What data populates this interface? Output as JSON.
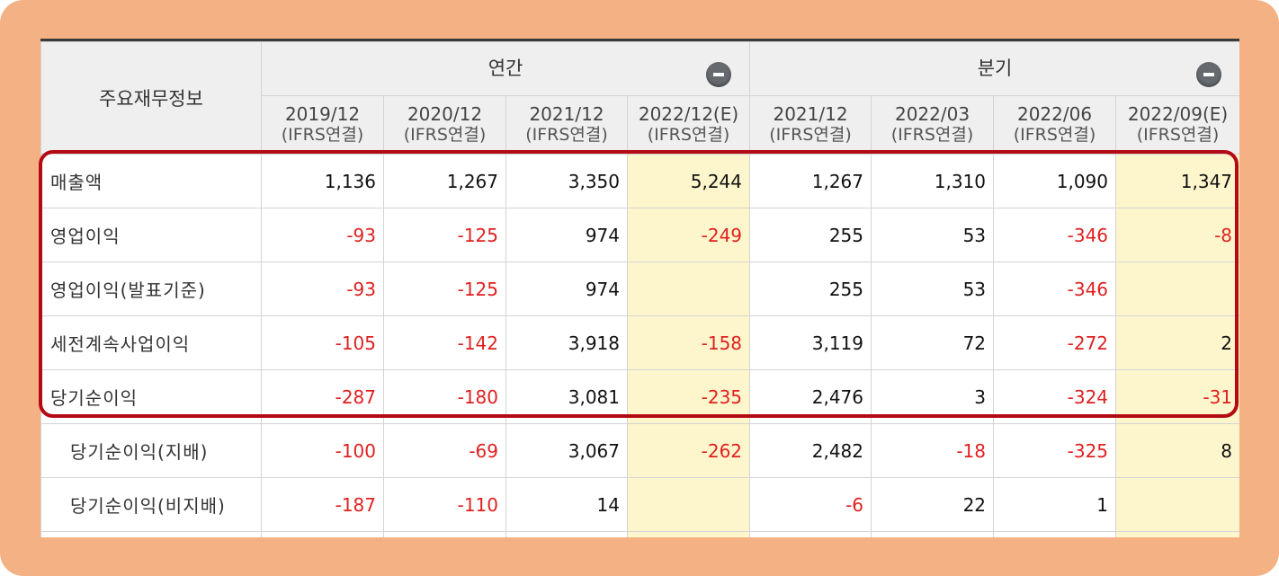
{
  "table": {
    "main_header": "주요재무정보",
    "groups": [
      {
        "label": "연간",
        "span": 4
      },
      {
        "label": "분기",
        "span": 4
      }
    ],
    "periods": [
      {
        "date": "2019/12",
        "basis": "(IFRS연결)"
      },
      {
        "date": "2020/12",
        "basis": "(IFRS연결)"
      },
      {
        "date": "2021/12",
        "basis": "(IFRS연결)"
      },
      {
        "date": "2022/12(E)",
        "basis": "(IFRS연결)"
      },
      {
        "date": "2021/12",
        "basis": "(IFRS연결)"
      },
      {
        "date": "2022/03",
        "basis": "(IFRS연결)"
      },
      {
        "date": "2022/06",
        "basis": "(IFRS연결)"
      },
      {
        "date": "2022/09(E)",
        "basis": "(IFRS연결)"
      }
    ],
    "estimate_columns": [
      3,
      7
    ],
    "rows": [
      {
        "label": "매출액",
        "indent": false,
        "values": [
          "1,136",
          "1,267",
          "3,350",
          "5,244",
          "1,267",
          "1,310",
          "1,090",
          "1,347"
        ]
      },
      {
        "label": "영업이익",
        "indent": false,
        "values": [
          "-93",
          "-125",
          "974",
          "-249",
          "255",
          "53",
          "-346",
          "-8"
        ]
      },
      {
        "label": "영업이익(발표기준)",
        "indent": false,
        "values": [
          "-93",
          "-125",
          "974",
          "",
          "255",
          "53",
          "-346",
          ""
        ]
      },
      {
        "label": "세전계속사업이익",
        "indent": false,
        "values": [
          "-105",
          "-142",
          "3,918",
          "-158",
          "3,119",
          "72",
          "-272",
          "2"
        ]
      },
      {
        "label": "당기순이익",
        "indent": false,
        "values": [
          "-287",
          "-180",
          "3,081",
          "-235",
          "2,476",
          "3",
          "-324",
          "-31"
        ]
      },
      {
        "label": "당기순이익(지배)",
        "indent": true,
        "values": [
          "-100",
          "-69",
          "3,067",
          "-262",
          "2,482",
          "-18",
          "-325",
          "8"
        ]
      },
      {
        "label": "당기순이익(비지배)",
        "indent": true,
        "values": [
          "-187",
          "-110",
          "14",
          "",
          "-6",
          "22",
          "1",
          ""
        ]
      },
      {
        "label": "",
        "indent": true,
        "values": [
          "",
          "",
          "",
          "",
          "",
          "",
          "",
          ""
        ]
      }
    ]
  },
  "colors": {
    "frame": "#f4b183",
    "highlight_border": "#b30a14",
    "estimate_bg": "#fdf6cc",
    "negative_text": "#e02020"
  },
  "icons": {
    "collapse": "minus-circle-icon"
  }
}
